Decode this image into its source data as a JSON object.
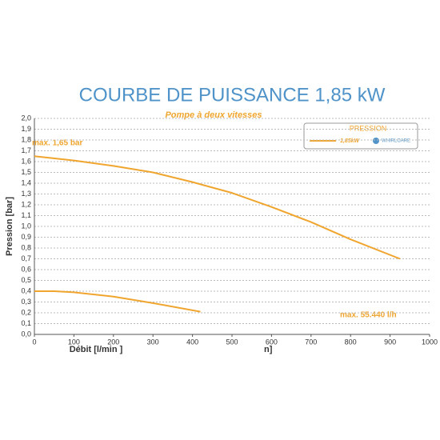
{
  "chart_data": {
    "type": "line",
    "title": "COURBE DE PUISSANCE 1,85 kW",
    "subtitle": "Pompe à deux vitesses",
    "xlabel": "Débit [l/min ]",
    "ylabel": "Pression [bar]",
    "annotations": [
      "max. 1,65 bar",
      "max. 55.440 l/h",
      "n]"
    ],
    "legend_title": "PRESSION",
    "brand": "WHIRLCARE",
    "xlim": [
      0,
      1000
    ],
    "xticks": [
      0,
      100,
      200,
      300,
      400,
      500,
      600,
      700,
      800,
      900,
      1000
    ],
    "ylim": [
      0,
      2
    ],
    "yticks": [
      {
        "value": 0,
        "label": "0,0"
      },
      {
        "value": 0.1,
        "label": "0,1"
      },
      {
        "value": 0.2,
        "label": "0,2"
      },
      {
        "value": 0.3,
        "label": "0,3"
      },
      {
        "value": 0.4,
        "label": "0,4"
      },
      {
        "value": 0.5,
        "label": "0,5"
      },
      {
        "value": 0.6,
        "label": "0,6"
      },
      {
        "value": 0.7,
        "label": "0,7"
      },
      {
        "value": 0.8,
        "label": "0,8"
      },
      {
        "value": 0.9,
        "label": "0,9"
      },
      {
        "value": 1.0,
        "label": "1,0"
      },
      {
        "value": 1.1,
        "label": "1,1"
      },
      {
        "value": 1.2,
        "label": "1,2"
      },
      {
        "value": 1.3,
        "label": "1,3"
      },
      {
        "value": 1.4,
        "label": "1,4"
      },
      {
        "value": 1.5,
        "label": "1,5"
      },
      {
        "value": 1.6,
        "label": "1,6"
      },
      {
        "value": 1.7,
        "label": "1,7"
      },
      {
        "value": 1.8,
        "label": "1,8"
      },
      {
        "value": 1.9,
        "label": "1,9"
      },
      {
        "value": 2.0,
        "label": "2,0"
      }
    ],
    "grid": true,
    "legend_position": "upper right",
    "series": [
      {
        "name": "1,85kW",
        "color": "#f0a52e",
        "x": [
          0,
          100,
          200,
          300,
          400,
          500,
          600,
          700,
          800,
          925
        ],
        "values": [
          1.65,
          1.61,
          1.56,
          1.5,
          1.41,
          1.31,
          1.18,
          1.04,
          0.88,
          0.7
        ]
      },
      {
        "color": "#f0a52e",
        "x": [
          0,
          50,
          100,
          200,
          300,
          420
        ],
        "values": [
          0.4,
          0.4,
          0.39,
          0.35,
          0.29,
          0.21
        ]
      }
    ]
  }
}
